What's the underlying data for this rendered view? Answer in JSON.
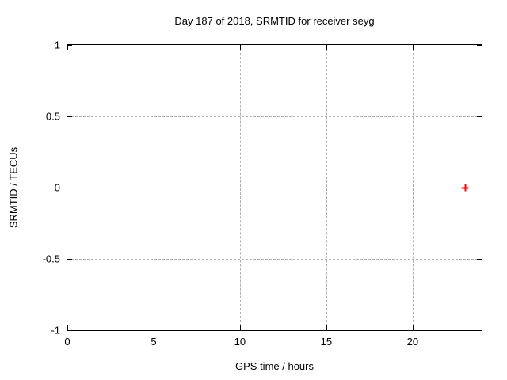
{
  "chart_data": {
    "type": "scatter",
    "title": "Day 187 of 2018, SRMTID for receiver seyg",
    "xlabel": "GPS time / hours",
    "ylabel": "SRMTID / TECUs",
    "xlim": [
      0,
      24
    ],
    "ylim": [
      -1,
      1
    ],
    "xticks": [
      0,
      5,
      10,
      15,
      20
    ],
    "xtick_labels": [
      "0",
      "5",
      "10",
      "15",
      "20"
    ],
    "yticks": [
      -1,
      -0.5,
      0,
      0.5,
      1
    ],
    "ytick_labels": [
      "-1",
      "-0.5",
      "0",
      "0.5",
      "1"
    ],
    "grid": true,
    "legend": "none",
    "series": [
      {
        "name": "SRMTID",
        "marker": "plus",
        "color": "#ff0000",
        "points": [
          {
            "x": 23.05,
            "y": 0.0
          }
        ]
      }
    ]
  },
  "colors": {
    "background": "#ffffff",
    "plot_border": "#000000",
    "grid": "#b0b0b0",
    "text": "#000000",
    "marker": "#ff0000"
  }
}
